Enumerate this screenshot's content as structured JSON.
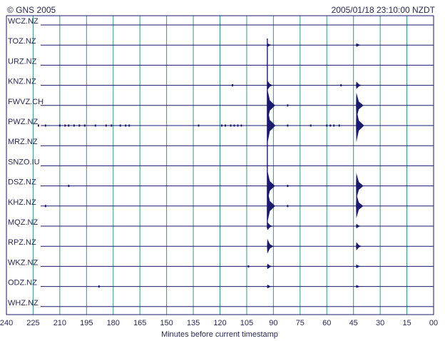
{
  "header": {
    "copyright": "© GNS 2005",
    "timestamp": "2005/01/18 23:10:00 NZDT"
  },
  "chart_data": {
    "type": "line",
    "title": "",
    "xlabel": "Minutes before current timestamp",
    "ylabel": "",
    "xlim": [
      240,
      0
    ],
    "x_ticks": [
      "240",
      "225",
      "210",
      "195",
      "180",
      "165",
      "150",
      "135",
      "120",
      "105",
      "90",
      "75",
      "60",
      "45",
      "30",
      "15",
      "00"
    ],
    "grid": true,
    "colors": {
      "grid": "#2e9a8c",
      "trace": "#1a1a6e",
      "frame": "#1a1a6e",
      "text": "#2a2a55"
    },
    "stations": [
      "WCZ.NZ",
      "TOZ.NZ",
      "URZ.NZ",
      "KNZ.NZ",
      "FWVZ.CH",
      "PWZ.NZ",
      "MRZ.NZ",
      "SNZO.IU",
      "DSZ.NZ",
      "KHZ.NZ",
      "MQZ.NZ",
      "RPZ.NZ",
      "WKZ.NZ",
      "ODZ.NZ",
      "WHZ.NZ"
    ],
    "events": [
      {
        "name": "",
        "minutes_before": 93,
        "amplitudes": [
          0,
          0.1,
          0,
          0.25,
          0.9,
          1.0,
          0.02,
          0.03,
          0.85,
          0.9,
          0.22,
          0.4,
          0.15,
          0.1,
          0
        ]
      },
      {
        "name": "",
        "minutes_before": 43,
        "amplitudes": [
          0,
          0.1,
          0,
          0.2,
          0.7,
          0.9,
          0,
          0,
          0.7,
          0.65,
          0.12,
          0.22,
          0.1,
          0.08,
          0
        ]
      }
    ],
    "noise": [
      {
        "station": "KNZ.NZ",
        "minutes_before": [
          113,
          52
        ]
      },
      {
        "station": "FWVZ.CH",
        "minutes_before": [
          82
        ]
      },
      {
        "station": "PWZ.NZ",
        "minutes_before": [
          222,
          218,
          210,
          207,
          205,
          202,
          199,
          196,
          190,
          184,
          181,
          176,
          173,
          171,
          132,
          119,
          117,
          114,
          112,
          110,
          108,
          82,
          69,
          60,
          58,
          56,
          53
        ]
      },
      {
        "station": "DSZ.NZ",
        "minutes_before": [
          205,
          82
        ]
      },
      {
        "station": "KHZ.NZ",
        "minutes_before": [
          218,
          82
        ]
      },
      {
        "station": "WKZ.NZ",
        "minutes_before": [
          104
        ]
      },
      {
        "station": "ODZ.NZ",
        "minutes_before": [
          188
        ]
      }
    ]
  }
}
